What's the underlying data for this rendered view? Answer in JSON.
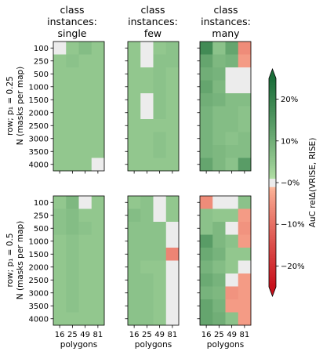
{
  "column_titles": [
    [
      "class",
      "instances:",
      "single"
    ],
    [
      "class",
      "instances:",
      "few"
    ],
    [
      "class",
      "instances:",
      "many"
    ]
  ],
  "row_labels": [
    [
      "row; p₁ = 0.25",
      "N (masks per map)"
    ],
    [
      "row; p₁ = 0.5",
      "N (masks per map)"
    ]
  ],
  "colorbar": {
    "label": "AuC relΔ(VRISE, RISE)",
    "ticks": [
      {
        "value": 20,
        "label": "20%"
      },
      {
        "value": 10,
        "label": "10%"
      },
      {
        "value": 0,
        "label": "−0%"
      },
      {
        "value": -10,
        "label": "−10%"
      },
      {
        "value": -20,
        "label": "−20%"
      }
    ],
    "range": [
      -25,
      25
    ],
    "neutral_band": [
      -1,
      1
    ],
    "extend": "both",
    "positive_color": "#1b6e3a",
    "negative_color": "#c8101b",
    "neutral_color": "#ececec"
  },
  "chart_data": {
    "type": "heatmap",
    "x_label": "polygons",
    "x_categories": [
      "16",
      "25",
      "49",
      "81"
    ],
    "y_categories": [
      "100",
      "250",
      "500",
      "1000",
      "1500",
      "2000",
      "2500",
      "3000",
      "3500",
      "4000"
    ],
    "value_unit": "%",
    "panels": [
      {
        "row": 0,
        "col": 0,
        "values": [
          [
            0,
            5,
            7,
            5
          ],
          [
            5,
            6,
            5,
            5
          ],
          [
            5,
            5,
            5,
            5
          ],
          [
            5,
            5,
            5,
            5
          ],
          [
            5,
            5,
            5,
            5
          ],
          [
            5,
            5,
            5,
            5
          ],
          [
            5,
            5,
            5,
            5
          ],
          [
            5,
            5,
            5,
            5
          ],
          [
            5,
            5,
            5,
            5
          ],
          [
            5,
            5,
            5,
            0
          ]
        ]
      },
      {
        "row": 0,
        "col": 1,
        "values": [
          [
            5,
            0,
            5,
            6
          ],
          [
            5,
            0,
            6,
            6
          ],
          [
            5,
            5,
            6,
            5
          ],
          [
            5,
            5,
            6,
            5
          ],
          [
            5,
            0,
            6,
            5
          ],
          [
            5,
            0,
            6,
            5
          ],
          [
            5,
            5,
            5,
            5
          ],
          [
            5,
            5,
            6,
            5
          ],
          [
            5,
            5,
            6,
            5
          ],
          [
            5,
            5,
            5,
            5
          ]
        ]
      },
      {
        "row": 0,
        "col": 2,
        "values": [
          [
            18,
            6,
            12,
            -6
          ],
          [
            12,
            8,
            9,
            -4
          ],
          [
            10,
            9,
            0,
            0
          ],
          [
            12,
            8,
            0,
            0
          ],
          [
            10,
            9,
            7,
            7
          ],
          [
            9,
            7,
            7,
            6
          ],
          [
            9,
            7,
            7,
            6
          ],
          [
            9,
            7,
            6,
            7
          ],
          [
            9,
            8,
            7,
            7
          ],
          [
            12,
            8,
            6,
            14
          ]
        ]
      },
      {
        "row": 1,
        "col": 0,
        "values": [
          [
            5,
            8,
            0,
            5
          ],
          [
            6,
            7,
            5,
            5
          ],
          [
            6,
            7,
            6,
            5
          ],
          [
            5,
            6,
            5,
            5
          ],
          [
            5,
            6,
            5,
            5
          ],
          [
            5,
            6,
            5,
            5
          ],
          [
            5,
            6,
            5,
            5
          ],
          [
            5,
            6,
            5,
            5
          ],
          [
            5,
            6,
            5,
            5
          ],
          [
            5,
            5,
            5,
            5
          ]
        ]
      },
      {
        "row": 1,
        "col": 1,
        "values": [
          [
            5,
            6,
            0,
            5
          ],
          [
            7,
            6,
            0,
            5
          ],
          [
            6,
            6,
            6,
            0
          ],
          [
            6,
            6,
            6,
            0
          ],
          [
            6,
            6,
            6,
            -7
          ],
          [
            6,
            5,
            5,
            0
          ],
          [
            6,
            6,
            5,
            0
          ],
          [
            6,
            6,
            5,
            0
          ],
          [
            6,
            6,
            5,
            0
          ],
          [
            6,
            6,
            5,
            0
          ]
        ]
      },
      {
        "row": 1,
        "col": 2,
        "values": [
          [
            -6,
            0,
            0,
            6
          ],
          [
            6,
            5,
            5,
            -4
          ],
          [
            6,
            8,
            0,
            -5
          ],
          [
            14,
            8,
            6,
            -4
          ],
          [
            11,
            9,
            5,
            5
          ],
          [
            9,
            7,
            5,
            0
          ],
          [
            11,
            9,
            0,
            -4
          ],
          [
            9,
            8,
            -5,
            -4
          ],
          [
            12,
            9,
            -4,
            -4
          ],
          [
            12,
            10,
            6,
            -4
          ]
        ]
      }
    ]
  }
}
